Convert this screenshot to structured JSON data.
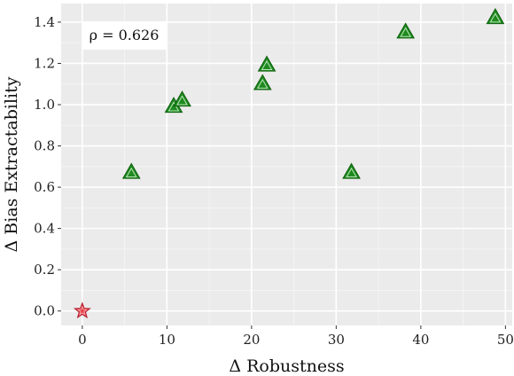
{
  "chart_data": {
    "type": "scatter",
    "xlabel": "Δ Robustness",
    "ylabel": "Δ Bias Extractability",
    "xlim": [
      -2.5,
      50.8
    ],
    "ylim": [
      -0.07,
      1.49
    ],
    "x_ticks": [
      0,
      10,
      20,
      30,
      40,
      50
    ],
    "y_ticks": [
      0.0,
      0.2,
      0.4,
      0.6,
      0.8,
      1.0,
      1.2,
      1.4
    ],
    "x_tick_labels": [
      "0",
      "10",
      "20",
      "30",
      "40",
      "50"
    ],
    "y_tick_labels": [
      "0.0",
      "0.2",
      "0.4",
      "0.6",
      "0.8",
      "1.0",
      "1.2",
      "1.4"
    ],
    "grid": true,
    "annotation": "ρ = 0.626",
    "series": [
      {
        "marker": "triangle",
        "color": "#1f8a1f",
        "x": [
          5.8,
          10.8,
          11.8,
          21.3,
          21.8,
          31.8,
          38.2,
          48.8
        ],
        "y": [
          0.67,
          0.99,
          1.02,
          1.1,
          1.19,
          0.67,
          1.35,
          1.42
        ]
      },
      {
        "marker": "star",
        "color": "#e8434a",
        "x": [
          0.0
        ],
        "y": [
          0.0
        ]
      }
    ]
  }
}
